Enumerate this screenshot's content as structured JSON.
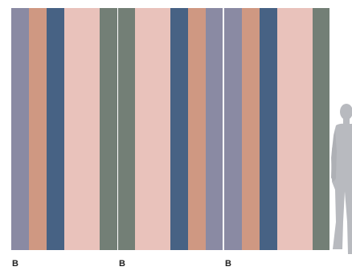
{
  "colors": {
    "slate_lavender": "#8a8aa3",
    "terracotta": "#cf9882",
    "steel_blue": "#476284",
    "blush_pink": "#e9c2bb",
    "sage_green": "#737f76",
    "figure_gray": "#b8babf"
  },
  "panels": [
    {
      "label": "B",
      "stripes": [
        {
          "color": "slate_lavender",
          "weight": 22
        },
        {
          "color": "terracotta",
          "weight": 22
        },
        {
          "color": "steel_blue",
          "weight": 22
        },
        {
          "color": "blush_pink",
          "weight": 44
        },
        {
          "color": "sage_green",
          "weight": 22
        }
      ]
    },
    {
      "label": "B",
      "stripes": [
        {
          "color": "sage_green",
          "weight": 21
        },
        {
          "color": "blush_pink",
          "weight": 44
        },
        {
          "color": "steel_blue",
          "weight": 22
        },
        {
          "color": "terracotta",
          "weight": 22
        },
        {
          "color": "slate_lavender",
          "weight": 21
        }
      ]
    },
    {
      "label": "B",
      "stripes": [
        {
          "color": "slate_lavender",
          "weight": 22
        },
        {
          "color": "terracotta",
          "weight": 22
        },
        {
          "color": "steel_blue",
          "weight": 22
        },
        {
          "color": "blush_pink",
          "weight": 44
        },
        {
          "color": "sage_green",
          "weight": 21
        }
      ]
    }
  ],
  "scale_figure": {
    "icon": "standing-person-silhouette"
  }
}
